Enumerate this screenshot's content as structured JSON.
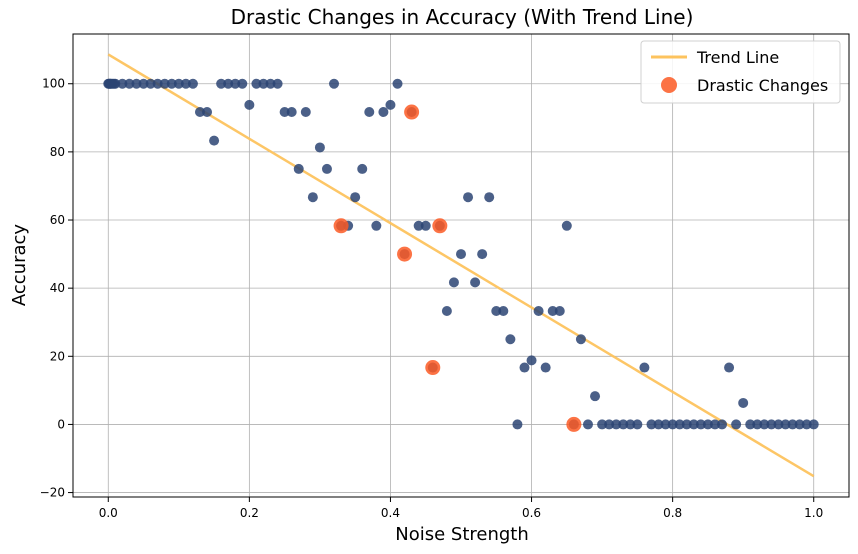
{
  "chart_data": {
    "type": "scatter",
    "title": "Drastic Changes in Accuracy (With Trend Line)",
    "xlabel": "Noise Strength",
    "ylabel": "Accuracy",
    "xlim": [
      -0.05,
      1.05
    ],
    "ylim": [
      -21.3,
      114.6
    ],
    "xticks": [
      0.0,
      0.2,
      0.4,
      0.6,
      0.8,
      1.0
    ],
    "xtick_labels": [
      "0.0",
      "0.2",
      "0.4",
      "0.6",
      "0.8",
      "1.0"
    ],
    "yticks": [
      -20,
      0,
      20,
      40,
      60,
      80,
      100
    ],
    "ytick_labels": [
      "−20",
      "0",
      "20",
      "40",
      "60",
      "80",
      "100"
    ],
    "grid": true,
    "legend_position": "top-right",
    "legend": [
      {
        "label": "Trend Line",
        "kind": "line",
        "color": "#fdc35e"
      },
      {
        "label": "Drastic Changes",
        "kind": "marker",
        "color": "#fc5b24"
      }
    ],
    "trend_line": {
      "x": [
        0.0,
        1.0
      ],
      "y": [
        108.6,
        -15.2
      ],
      "color": "#fdc35e"
    },
    "series": [
      {
        "name": "Accuracy",
        "color": "#2c4473",
        "points": [
          [
            0.0,
            100
          ],
          [
            0.001,
            100
          ],
          [
            0.002,
            100
          ],
          [
            0.003,
            100
          ],
          [
            0.004,
            100
          ],
          [
            0.006,
            100
          ],
          [
            0.008,
            100
          ],
          [
            0.01,
            100
          ],
          [
            0.02,
            100
          ],
          [
            0.03,
            100
          ],
          [
            0.04,
            100
          ],
          [
            0.05,
            100
          ],
          [
            0.06,
            100
          ],
          [
            0.07,
            100
          ],
          [
            0.08,
            100
          ],
          [
            0.09,
            100
          ],
          [
            0.1,
            100
          ],
          [
            0.11,
            100
          ],
          [
            0.12,
            100
          ],
          [
            0.13,
            91.7
          ],
          [
            0.14,
            91.7
          ],
          [
            0.15,
            83.3
          ],
          [
            0.16,
            100
          ],
          [
            0.17,
            100
          ],
          [
            0.18,
            100
          ],
          [
            0.19,
            100
          ],
          [
            0.2,
            93.8
          ],
          [
            0.21,
            100
          ],
          [
            0.22,
            100
          ],
          [
            0.23,
            100
          ],
          [
            0.24,
            100
          ],
          [
            0.25,
            91.7
          ],
          [
            0.26,
            91.7
          ],
          [
            0.27,
            75
          ],
          [
            0.28,
            91.7
          ],
          [
            0.29,
            66.7
          ],
          [
            0.3,
            81.3
          ],
          [
            0.31,
            75
          ],
          [
            0.32,
            100
          ],
          [
            0.33,
            58.3
          ],
          [
            0.34,
            58.3
          ],
          [
            0.35,
            66.7
          ],
          [
            0.36,
            75
          ],
          [
            0.37,
            91.7
          ],
          [
            0.38,
            58.3
          ],
          [
            0.39,
            91.7
          ],
          [
            0.4,
            93.8
          ],
          [
            0.41,
            100
          ],
          [
            0.42,
            50
          ],
          [
            0.43,
            91.7
          ],
          [
            0.44,
            58.3
          ],
          [
            0.45,
            58.3
          ],
          [
            0.46,
            16.7
          ],
          [
            0.47,
            58.3
          ],
          [
            0.48,
            33.3
          ],
          [
            0.49,
            41.7
          ],
          [
            0.5,
            50
          ],
          [
            0.51,
            66.7
          ],
          [
            0.52,
            41.7
          ],
          [
            0.53,
            50
          ],
          [
            0.54,
            66.7
          ],
          [
            0.55,
            33.3
          ],
          [
            0.56,
            33.3
          ],
          [
            0.57,
            25
          ],
          [
            0.58,
            0
          ],
          [
            0.59,
            16.7
          ],
          [
            0.6,
            18.8
          ],
          [
            0.61,
            33.3
          ],
          [
            0.62,
            16.7
          ],
          [
            0.63,
            33.3
          ],
          [
            0.64,
            33.3
          ],
          [
            0.65,
            58.3
          ],
          [
            0.66,
            0
          ],
          [
            0.67,
            25
          ],
          [
            0.68,
            0
          ],
          [
            0.69,
            8.3
          ],
          [
            0.7,
            0
          ],
          [
            0.71,
            0
          ],
          [
            0.72,
            0
          ],
          [
            0.73,
            0
          ],
          [
            0.74,
            0
          ],
          [
            0.75,
            0
          ],
          [
            0.76,
            16.7
          ],
          [
            0.77,
            0
          ],
          [
            0.78,
            0
          ],
          [
            0.79,
            0
          ],
          [
            0.8,
            0
          ],
          [
            0.81,
            0
          ],
          [
            0.82,
            0
          ],
          [
            0.83,
            0
          ],
          [
            0.84,
            0
          ],
          [
            0.85,
            0
          ],
          [
            0.86,
            0
          ],
          [
            0.87,
            0
          ],
          [
            0.88,
            16.7
          ],
          [
            0.89,
            0
          ],
          [
            0.9,
            6.3
          ],
          [
            0.91,
            0
          ],
          [
            0.92,
            0
          ],
          [
            0.93,
            0
          ],
          [
            0.94,
            0
          ],
          [
            0.95,
            0
          ],
          [
            0.96,
            0
          ],
          [
            0.97,
            0
          ],
          [
            0.98,
            0
          ],
          [
            0.99,
            0
          ],
          [
            1.0,
            0
          ]
        ]
      },
      {
        "name": "Drastic Changes",
        "color": "#fc5b24",
        "points": [
          [
            0.33,
            58.3
          ],
          [
            0.42,
            50
          ],
          [
            0.43,
            91.7
          ],
          [
            0.46,
            16.7
          ],
          [
            0.47,
            58.3
          ],
          [
            0.66,
            0
          ]
        ]
      }
    ]
  }
}
